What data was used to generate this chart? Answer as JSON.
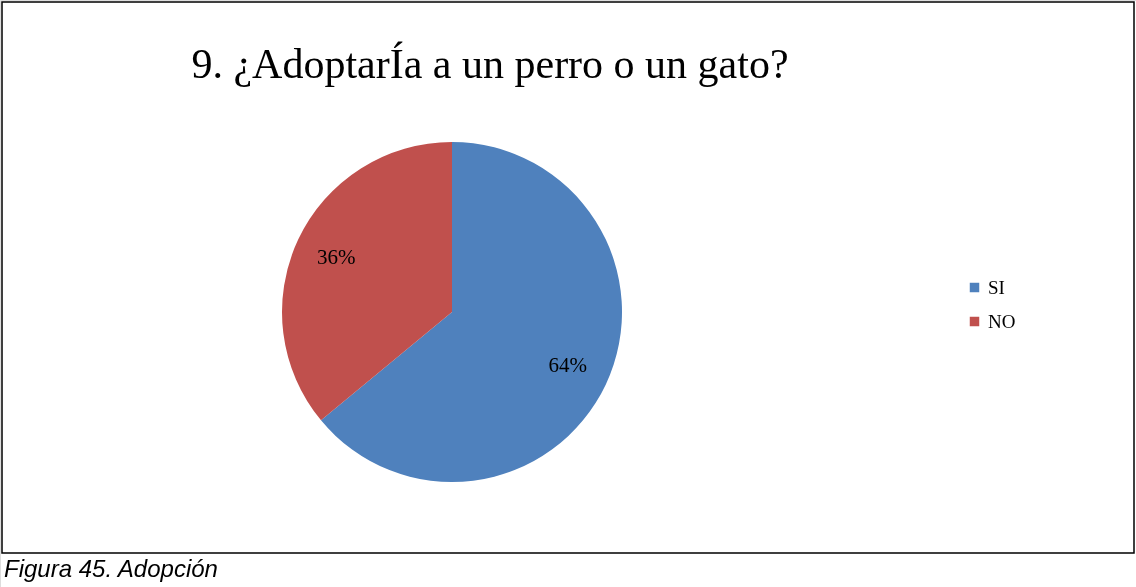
{
  "chart_data": {
    "type": "pie",
    "title": "9. ¿AdoptarÍa a un perro o un gato?",
    "categories": [
      "SI",
      "NO"
    ],
    "values": [
      64,
      36
    ],
    "colors": [
      "#4f81bd",
      "#c0504d"
    ],
    "value_labels": [
      "64%",
      "36%"
    ],
    "legend": "right",
    "annotations": [
      "Figura 45. Adopción"
    ]
  }
}
